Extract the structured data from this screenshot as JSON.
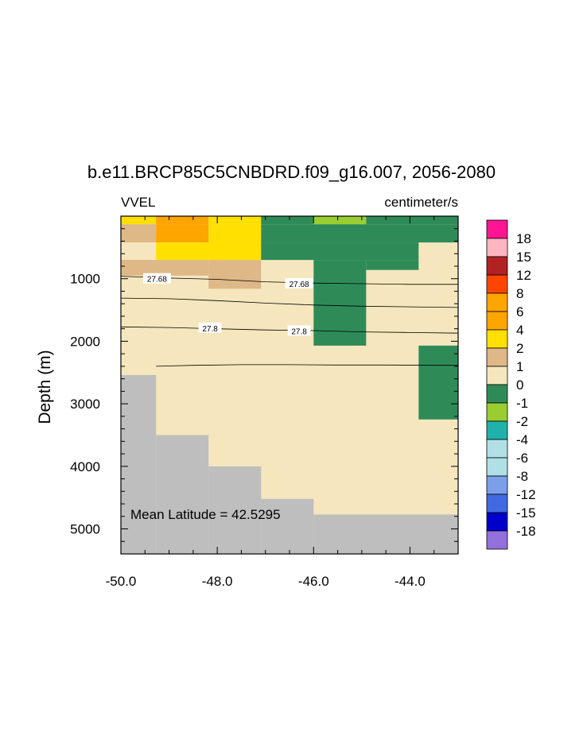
{
  "chart_data": {
    "type": "heatmap",
    "title": "b.e11.BRCP85C5CNBDRD.f09_g16.007, 2056-2080",
    "left_label": "VVEL",
    "right_label": "centimeter/s",
    "ylabel": "Depth (m)",
    "xlabel": "",
    "xlim": [
      -50.0,
      -43.0
    ],
    "ylim": [
      5400,
      0
    ],
    "x_ticks": [
      -50.0,
      -48.0,
      -46.0,
      -44.0
    ],
    "x_tick_labels": [
      "-50.0",
      "-48.0",
      "-46.0",
      "-44.0"
    ],
    "y_ticks": [
      1000,
      2000,
      3000,
      4000,
      5000
    ],
    "y_tick_labels": [
      "1000",
      "2000",
      "3000",
      "4000",
      "5000"
    ],
    "annotation": "Mean Latitude = 42.5295",
    "missing_color": "#bebebe",
    "colorbar": {
      "labels": [
        "18",
        "15",
        "12",
        "8",
        "6",
        "4",
        "2",
        "1",
        "0",
        "-1",
        "-2",
        "-4",
        "-6",
        "-8",
        "-12",
        "-15",
        "-18"
      ],
      "colors": [
        "#ff1493",
        "#ffb6c1",
        "#b22222",
        "#ff4500",
        "#ffa500",
        "#ffa500",
        "#ffe000",
        "#deb887",
        "#f5e6be",
        "#2e8b57",
        "#9acd32",
        "#20b2aa",
        "#b0e0e6",
        "#b0e0e6",
        "#7b9fe8",
        "#4169e1",
        "#0000cd",
        "#9370db"
      ]
    },
    "cells": [
      {
        "x0": -50.0,
        "x1": -49.27,
        "d0": 0,
        "d1": 130,
        "color": "#ffe000"
      },
      {
        "x0": -49.27,
        "x1": -48.18,
        "d0": 0,
        "d1": 130,
        "color": "#ffa500"
      },
      {
        "x0": -48.18,
        "x1": -47.09,
        "d0": 0,
        "d1": 130,
        "color": "#ffe000"
      },
      {
        "x0": -47.09,
        "x1": -46.0,
        "d0": 0,
        "d1": 130,
        "color": "#2e8b57"
      },
      {
        "x0": -46.0,
        "x1": -44.91,
        "d0": 0,
        "d1": 130,
        "color": "#9acd32"
      },
      {
        "x0": -44.91,
        "x1": -43.0,
        "d0": 0,
        "d1": 130,
        "color": "#2e8b57"
      },
      {
        "x0": -50.0,
        "x1": -49.27,
        "d0": 130,
        "d1": 420,
        "color": "#deb887"
      },
      {
        "x0": -49.27,
        "x1": -48.18,
        "d0": 130,
        "d1": 420,
        "color": "#ffa500"
      },
      {
        "x0": -48.18,
        "x1": -47.09,
        "d0": 130,
        "d1": 420,
        "color": "#ffe000"
      },
      {
        "x0": -47.09,
        "x1": -43.0,
        "d0": 130,
        "d1": 420,
        "color": "#2e8b57"
      },
      {
        "x0": -49.27,
        "x1": -47.09,
        "d0": 420,
        "d1": 700,
        "color": "#ffe000"
      },
      {
        "x0": -47.09,
        "x1": -43.82,
        "d0": 420,
        "d1": 700,
        "color": "#2e8b57"
      },
      {
        "x0": -50.0,
        "x1": -48.18,
        "d0": 700,
        "d1": 950,
        "color": "#deb887"
      },
      {
        "x0": -48.18,
        "x1": -47.09,
        "d0": 700,
        "d1": 1160,
        "color": "#deb887"
      },
      {
        "x0": -46.0,
        "x1": -44.91,
        "d0": 700,
        "d1": 2070,
        "color": "#2e8b57"
      },
      {
        "x0": -44.91,
        "x1": -43.82,
        "d0": 700,
        "d1": 860,
        "color": "#2e8b57"
      },
      {
        "x0": -43.82,
        "x1": -43.0,
        "d0": 2070,
        "d1": 3250,
        "color": "#2e8b57"
      },
      {
        "x0": -50.0,
        "x1": -49.27,
        "d0": 2540,
        "d1": 5400,
        "color": "#bebebe"
      },
      {
        "x0": -49.27,
        "x1": -48.18,
        "d0": 3500,
        "d1": 5400,
        "color": "#bebebe"
      },
      {
        "x0": -48.18,
        "x1": -47.09,
        "d0": 4000,
        "d1": 5400,
        "color": "#bebebe"
      },
      {
        "x0": -47.09,
        "x1": -46.0,
        "d0": 4520,
        "d1": 5400,
        "color": "#bebebe"
      },
      {
        "x0": -46.0,
        "x1": -43.0,
        "d0": 4770,
        "d1": 5400,
        "color": "#bebebe"
      }
    ],
    "contours": [
      {
        "label": "27.68",
        "points": [
          [
            -50.0,
            960
          ],
          [
            -49.0,
            990
          ],
          [
            -48.0,
            1010
          ],
          [
            -47.0,
            1050
          ],
          [
            -46.0,
            1070
          ],
          [
            -45.0,
            1080
          ],
          [
            -44.0,
            1090
          ],
          [
            -43.0,
            1090
          ]
        ],
        "label_positions": [
          [
            -49.25,
            1000
          ],
          [
            -46.3,
            1080
          ]
        ]
      },
      {
        "label": "",
        "points": [
          [
            -50.0,
            1310
          ],
          [
            -49.0,
            1320
          ],
          [
            -48.0,
            1350
          ],
          [
            -47.0,
            1390
          ],
          [
            -46.0,
            1420
          ],
          [
            -45.0,
            1440
          ],
          [
            -44.0,
            1450
          ],
          [
            -43.0,
            1460
          ]
        ],
        "label_positions": []
      },
      {
        "label": "27.8",
        "points": [
          [
            -50.0,
            1770
          ],
          [
            -49.0,
            1780
          ],
          [
            -48.0,
            1800
          ],
          [
            -47.0,
            1820
          ],
          [
            -46.0,
            1830
          ],
          [
            -45.0,
            1850
          ],
          [
            -44.0,
            1860
          ],
          [
            -43.0,
            1870
          ]
        ],
        "label_positions": [
          [
            -48.15,
            1790
          ],
          [
            -46.3,
            1835
          ]
        ]
      },
      {
        "label": "",
        "points": [
          [
            -49.27,
            2400
          ],
          [
            -48.5,
            2385
          ],
          [
            -47.5,
            2375
          ],
          [
            -46.5,
            2375
          ],
          [
            -45.5,
            2380
          ],
          [
            -44.5,
            2380
          ],
          [
            -43.5,
            2385
          ],
          [
            -43.0,
            2385
          ]
        ],
        "label_positions": []
      }
    ]
  }
}
